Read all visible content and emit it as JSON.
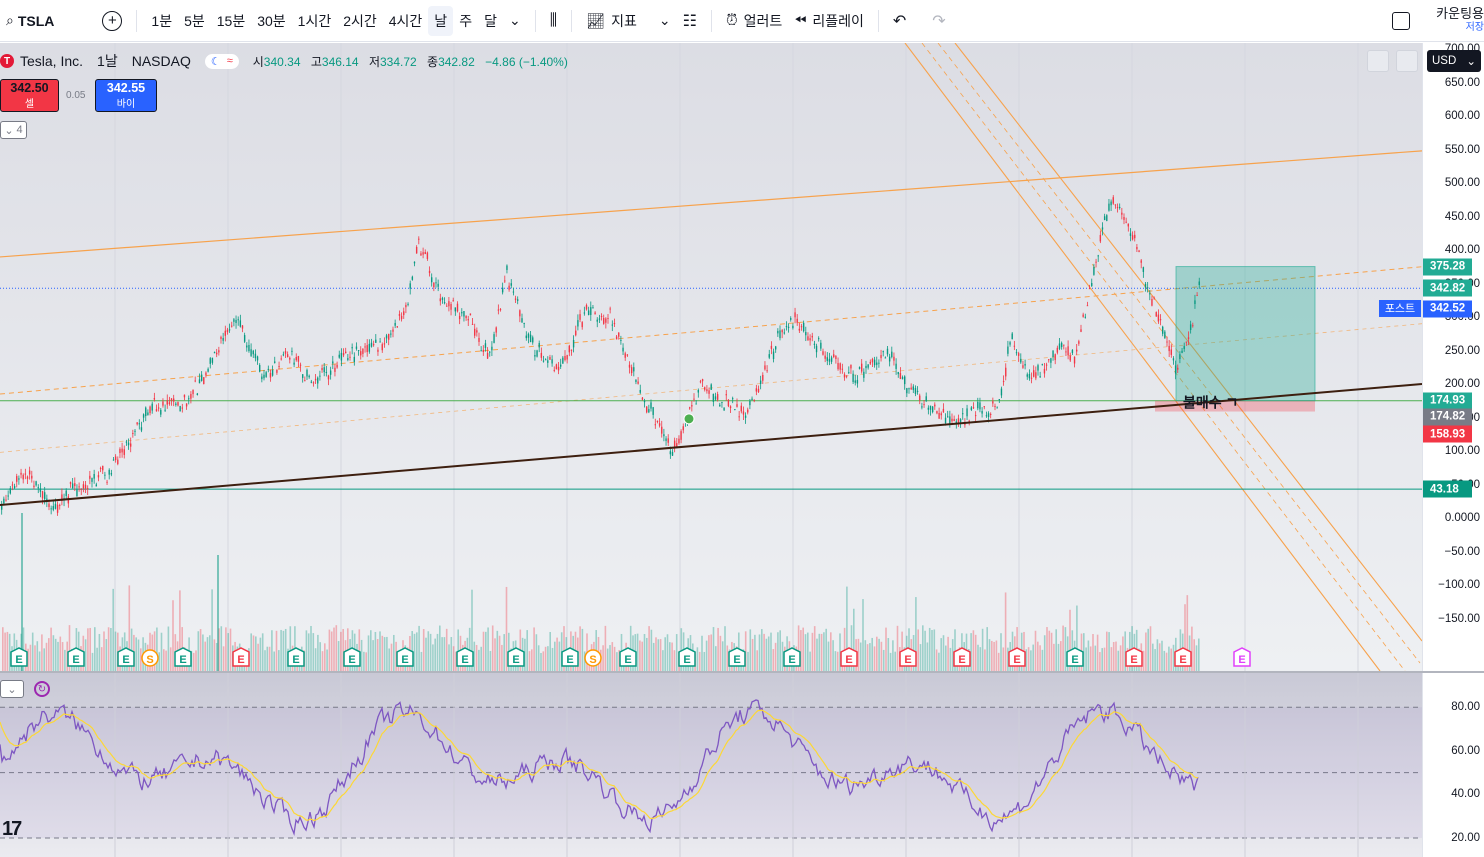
{
  "toolbar": {
    "symbol": "TSLA",
    "intervals": [
      "1분",
      "5분",
      "15분",
      "30분",
      "1시간",
      "2시간",
      "4시간",
      "날",
      "주",
      "달"
    ],
    "active_interval": "날",
    "indicators_label": "지표",
    "alert_label": "얼러트",
    "replay_label": "리플레이",
    "account_label": "카운팅용",
    "save_label": "저장"
  },
  "legend": {
    "name": "Tesla, Inc.",
    "interval": "1날",
    "exchange": "NASDAQ",
    "open_label": "시",
    "open": "340.34",
    "high_label": "고",
    "high": "346.14",
    "low_label": "저",
    "low": "334.72",
    "close_label": "종",
    "close": "342.82",
    "change": "−4.86 (−1.40%)"
  },
  "trade": {
    "sell_price": "342.50",
    "sell_label": "셀",
    "spread": "0.05",
    "buy_price": "342.55",
    "buy_label": "바이",
    "collapse_count": "4"
  },
  "annotation_text": "불매수 ㄱ",
  "currency": "USD",
  "price_axis": {
    "ticks": [
      "700.00",
      "650.00",
      "600.00",
      "550.00",
      "500.00",
      "450.00",
      "400.00",
      "350.00",
      "300.00",
      "250.00",
      "200.00",
      "150.00",
      "100.00",
      "50.00",
      "0.0000",
      "−50.00",
      "−100.00",
      "−150.00"
    ],
    "tick_values": [
      700,
      650,
      600,
      550,
      500,
      450,
      400,
      350,
      300,
      250,
      200,
      150,
      100,
      50,
      0,
      -50,
      -100,
      -150
    ],
    "badges": [
      {
        "label": "375.28",
        "value": 375.28,
        "color": "#22ab94"
      },
      {
        "label": "342.82",
        "value": 342.82,
        "color": "#22ab94"
      },
      {
        "label": "342.52",
        "value": 312.5,
        "color": "#2962ff"
      },
      {
        "label": "174.93",
        "value": 174.93,
        "color": "#22ab94"
      },
      {
        "label": "174.82",
        "value": 151,
        "color": "#787b86"
      },
      {
        "label": "158.93",
        "value": 125,
        "color": "#f23645"
      },
      {
        "label": "43.18",
        "value": 43.18,
        "color": "#089981"
      }
    ],
    "post_label": "포스트"
  },
  "rsi_axis": {
    "ticks": [
      "80.00",
      "60.00",
      "40.00",
      "20.00"
    ],
    "tick_values": [
      80,
      60,
      40,
      20
    ]
  },
  "events": [
    "E",
    "E",
    "E",
    "S",
    "E",
    "E",
    "E",
    "E",
    "E",
    "E",
    "E",
    "E",
    "S",
    "E",
    "E",
    "E",
    "E",
    "E",
    "E",
    "E",
    "E",
    "E",
    "E",
    "E",
    "E",
    "E"
  ],
  "colors": {
    "up": "#089981",
    "down": "#f23645",
    "channel": "#f7a24c",
    "trend": "#3d1f0f",
    "support": "#4caf50",
    "rsi": "#7e57c2",
    "rsi_ma": "#fdd835",
    "box": "#22ab94"
  }
}
